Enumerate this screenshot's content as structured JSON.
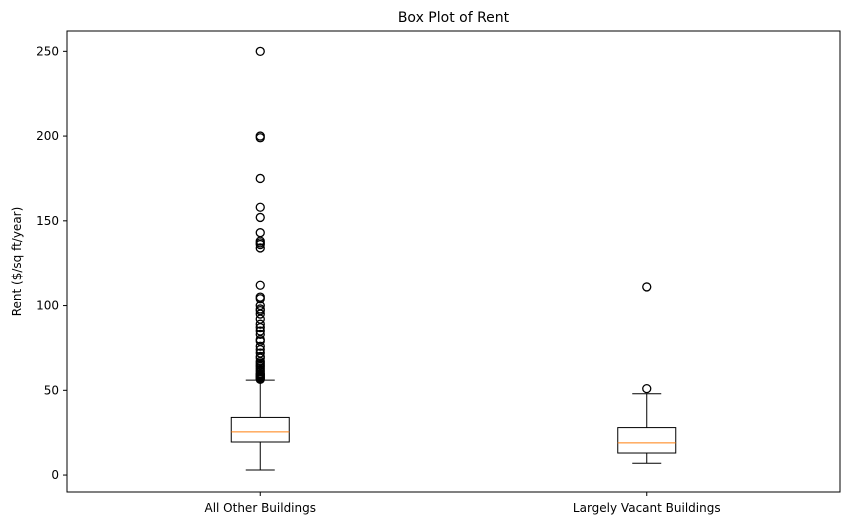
{
  "chart_data": {
    "type": "box",
    "title": "Box Plot of Rent",
    "xlabel": "",
    "ylabel": "Rent ($/sq ft/year)",
    "ylim": [
      -10,
      262
    ],
    "yticks": [
      0,
      50,
      100,
      150,
      200,
      250
    ],
    "grid": false,
    "categories": [
      "All Other Buildings",
      "Largely Vacant Buildings"
    ],
    "boxes": [
      {
        "category": "All Other Buildings",
        "whisker_low": 3,
        "q1": 19.5,
        "median": 25.5,
        "q3": 34,
        "whisker_high": 56,
        "outliers": [
          250,
          200,
          199,
          175,
          158,
          152,
          143,
          138,
          137,
          136,
          134,
          112,
          105,
          104,
          100,
          98,
          97,
          95,
          92,
          89,
          87,
          85,
          83,
          80,
          79,
          76,
          74,
          72,
          70,
          69,
          67,
          66,
          65,
          64,
          63,
          62,
          61,
          60,
          59.5,
          59,
          58.5,
          58,
          57.5,
          57,
          56.5
        ]
      },
      {
        "category": "Largely Vacant Buildings",
        "whisker_low": 7,
        "q1": 13,
        "median": 19,
        "q3": 28,
        "whisker_high": 48,
        "outliers": [
          111,
          51
        ]
      }
    ],
    "colors": {
      "box": "#000000",
      "median": "#ff7f0e",
      "outlier": "#000000"
    }
  }
}
